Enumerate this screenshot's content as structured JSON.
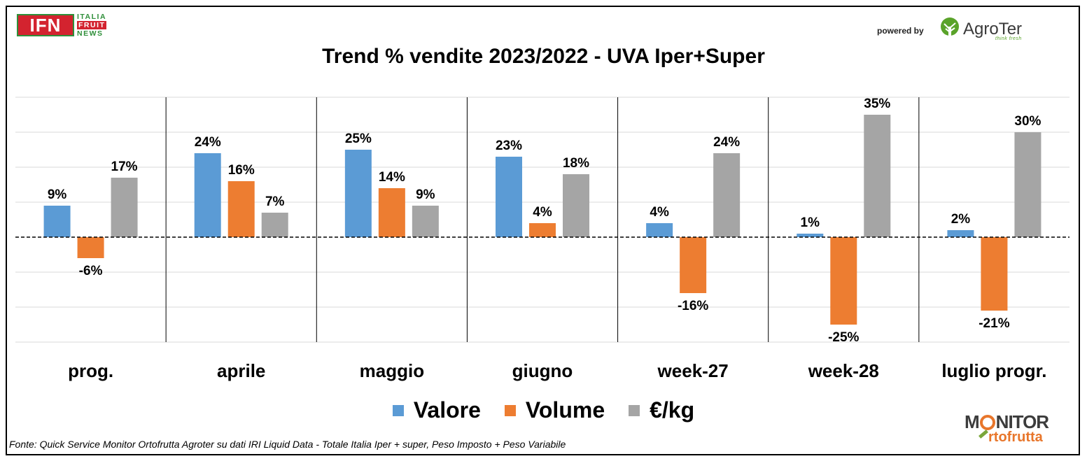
{
  "header": {
    "ifn_logo": {
      "letters": "IFN",
      "line1": "ITALIA",
      "line2": "FRUIT",
      "line3": "NEWS"
    },
    "powered_by": "powered by",
    "agroter": {
      "name": "AgroTer",
      "tagline": "think fresh"
    }
  },
  "footer": {
    "source": "Fonte: Quick Service Monitor Ortofrutta Agroter su dati IRI Liquid Data - Totale Italia Iper + super, Peso Imposto + Peso Variabile",
    "monitor_logo": {
      "line1_a": "M",
      "line1_b": "NITOR",
      "line2": "rtofrutta"
    }
  },
  "colors": {
    "valore": "#5b9bd5",
    "volume": "#ed7d31",
    "prezzo": "#a5a5a5",
    "grid": "#d9d9d9",
    "axis": "#000000"
  },
  "chart_data": {
    "type": "bar",
    "title": "Trend % vendite 2023/2022 - UVA Iper+Super",
    "categories": [
      "prog.",
      "aprile",
      "maggio",
      "giugno",
      "week-27",
      "week-28",
      "luglio progr."
    ],
    "series": [
      {
        "name": "Valore",
        "values": [
          9,
          24,
          25,
          23,
          4,
          1,
          2
        ],
        "labels": [
          "9%",
          "24%",
          "25%",
          "23%",
          "4%",
          "1%",
          "2%"
        ]
      },
      {
        "name": "Volume",
        "values": [
          -6,
          16,
          14,
          4,
          -16,
          -25,
          -21
        ],
        "labels": [
          "-6%",
          "16%",
          "14%",
          "4%",
          "-16%",
          "-25%",
          "-21%"
        ]
      },
      {
        "name": "€/kg",
        "values": [
          17,
          7,
          9,
          18,
          24,
          35,
          30
        ],
        "labels": [
          "17%",
          "7%",
          "9%",
          "18%",
          "24%",
          "35%",
          "30%"
        ]
      }
    ],
    "ylim": [
      -30,
      40
    ],
    "gridlines_every": 10,
    "grid": true,
    "zero_line": "dashed",
    "category_separators": true,
    "legend_position": "bottom"
  }
}
